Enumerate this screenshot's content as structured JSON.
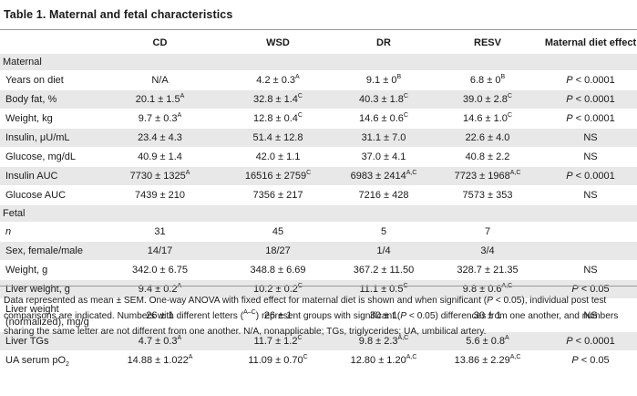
{
  "title": "Table 1. Maternal and fetal characteristics",
  "columns": [
    "",
    "CD",
    "WSD",
    "DR",
    "RESV",
    "Maternal diet effect"
  ],
  "sections": {
    "maternal": "Maternal",
    "fetal": "Fetal"
  },
  "rows": {
    "years": {
      "label": "Years on diet",
      "cd": "N/A",
      "wsd": "4.2 ± 0.3",
      "wsd_sup": "A",
      "dr": "9.1 ± 0",
      "dr_sup": "B",
      "resv": "6.8 ± 0",
      "resv_sup": "B",
      "effect_p": "P",
      "effect": " < 0.0001"
    },
    "bodyfat": {
      "label": "Body fat, %",
      "cd": "20.1 ± 1.5",
      "cd_sup": "A",
      "wsd": "32.8 ± 1.4",
      "wsd_sup": "C",
      "dr": "40.3 ± 1.8",
      "dr_sup": "C",
      "resv": "39.0 ± 2.8",
      "resv_sup": "C",
      "effect_p": "P",
      "effect": " < 0.0001"
    },
    "weight": {
      "label": "Weight, kg",
      "cd": "9.7 ± 0.3",
      "cd_sup": "A",
      "wsd": "12.8 ± 0.4",
      "wsd_sup": "C",
      "dr": "14.6 ± 0.6",
      "dr_sup": "C",
      "resv": "14.6 ± 1.0",
      "resv_sup": "C",
      "effect_p": "P",
      "effect": " < 0.0001"
    },
    "insulin": {
      "label": "Insulin, μU/mL",
      "cd": "23.4 ± 4.3",
      "wsd": "51.4 ± 12.8",
      "dr": "31.1 ± 7.0",
      "resv": "22.6 ± 4.0",
      "effect": "NS"
    },
    "glucose": {
      "label": "Glucose, mg/dL",
      "cd": "40.9 ± 1.4",
      "wsd": "42.0 ± 1.1",
      "dr": "37.0 ± 4.1",
      "resv": "40.8 ± 2.2",
      "effect": "NS"
    },
    "insulin_auc": {
      "label": "Insulin AUC",
      "cd": "7730 ± 1325",
      "cd_sup": "A",
      "wsd": "16516 ± 2759",
      "wsd_sup": "C",
      "dr": "6983 ± 2414",
      "dr_sup": "A,C",
      "resv": "7723 ± 1968",
      "resv_sup": "A,C",
      "effect_p": "P",
      "effect": " < 0.0001"
    },
    "glucose_auc": {
      "label": "Glucose AUC",
      "cd": "7439 ± 210",
      "wsd": "7356 ± 217",
      "dr": "7216 ± 428",
      "resv": "7573 ± 353",
      "effect": "NS"
    },
    "n": {
      "label": "n",
      "cd": "31",
      "wsd": "45",
      "dr": "5",
      "resv": "7",
      "effect": ""
    },
    "sex": {
      "label": "Sex, female/male",
      "cd": "14/17",
      "wsd": "18/27",
      "dr": "1/4",
      "resv": "3/4",
      "effect": ""
    },
    "fweight": {
      "label": "Weight, g",
      "cd": "342.0 ± 6.75",
      "wsd": "348.8 ± 6.69",
      "dr": "367.2 ± 11.50",
      "resv": "328.7 ± 21.35",
      "effect": "NS"
    },
    "liver": {
      "label": "Liver weight, g",
      "cd": "9.4 ± 0.2",
      "cd_sup": "A",
      "wsd": "10.2 ± 0.2",
      "wsd_sup": "C",
      "dr": "11.1 ± 0.5",
      "dr_sup": "C",
      "resv": "9.8 ± 0.6",
      "resv_sup": "A,C",
      "effect_p": "P",
      "effect": " < 0.05"
    },
    "liver_norm": {
      "label1": "Liver weight",
      "label2": "(normalized), mg/g",
      "cd": "26 ± 1",
      "wsd": "26 ± 1",
      "dr": "30 ± 1",
      "resv": "30 ± 1",
      "effect": "NS"
    },
    "tgs": {
      "label": "Liver TGs",
      "cd": "4.7 ± 0.3",
      "cd_sup": "A",
      "wsd": "11.7 ± 1.2",
      "wsd_sup": "C",
      "dr": "9.8 ± 2.3",
      "dr_sup": "A,C",
      "resv": "5.6 ± 0.8",
      "resv_sup": "A",
      "effect_p": "P",
      "effect": " < 0.0001"
    },
    "po2": {
      "label": "UA serum pO",
      "label_sub": "2",
      "cd": "14.88 ± 1.022",
      "cd_sup": "A",
      "wsd": "11.09 ± 0.70",
      "wsd_sup": "C",
      "dr": "12.80 ± 1.20",
      "dr_sup": "A,C",
      "resv": "13.86 ± 2.29",
      "resv_sup": "A,C",
      "effect_p": "P",
      "effect": " < 0.05"
    }
  },
  "footnote": {
    "t1": "Data represented as mean ± SEM. One-way ANOVA with fixed effect for maternal diet is shown and when significant (",
    "p1": "P",
    "t2": " < 0.05), individual post test comparisons are indicated. Numbers with different letters (",
    "sup": "A–C",
    "t3": ") represent groups with significant (",
    "p2": "P",
    "t4": " < 0.05) differences from one another, and numbers sharing the same letter are not different from one another. N/A, nonapplicable; TGs, triglycerides; UA, umbilical artery."
  }
}
